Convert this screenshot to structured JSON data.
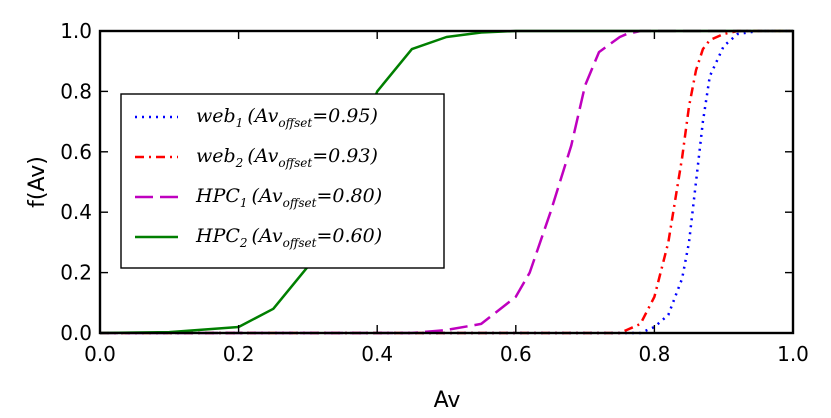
{
  "chart_data": {
    "type": "line",
    "xlabel": "Av",
    "ylabel": "f(Av)",
    "xlim": [
      0.0,
      1.0
    ],
    "ylim": [
      0.0,
      1.0
    ],
    "xticks": [
      "0.0",
      "0.2",
      "0.4",
      "0.6",
      "0.8",
      "1.0"
    ],
    "yticks": [
      "0.0",
      "0.2",
      "0.4",
      "0.6",
      "0.8",
      "1.0"
    ],
    "grid": false,
    "legend_position": "center-left",
    "x": [
      0.0,
      0.1,
      0.2,
      0.25,
      0.3,
      0.35,
      0.4,
      0.45,
      0.5,
      0.55,
      0.6,
      0.62,
      0.65,
      0.68,
      0.7,
      0.72,
      0.75,
      0.76,
      0.78,
      0.8,
      0.82,
      0.84,
      0.85,
      0.86,
      0.87,
      0.88,
      0.9,
      0.92,
      0.95,
      1.0
    ],
    "series": [
      {
        "name": "web1 (Av_offset=0.95)",
        "legend": {
          "base": "web",
          "sub": "1",
          "mid": "(Av",
          "sub2": "offset",
          "value": "=0.95)"
        },
        "style": "dotted",
        "color": "#0000ff",
        "values": [
          0,
          0,
          0,
          0,
          0,
          0,
          0,
          0,
          0,
          0,
          0,
          0,
          0,
          0,
          0,
          0,
          0,
          0,
          0,
          0.02,
          0.06,
          0.18,
          0.3,
          0.5,
          0.7,
          0.85,
          0.95,
          0.99,
          1.0,
          1.0
        ]
      },
      {
        "name": "web2 (Av_offset=0.93)",
        "legend": {
          "base": "web",
          "sub": "2",
          "mid": "(Av",
          "sub2": "offset",
          "value": "=0.93)"
        },
        "style": "dashdot",
        "color": "#ff0000",
        "values": [
          0,
          0,
          0,
          0,
          0,
          0,
          0,
          0,
          0,
          0,
          0,
          0,
          0,
          0,
          0,
          0,
          0,
          0.01,
          0.03,
          0.12,
          0.3,
          0.58,
          0.75,
          0.87,
          0.94,
          0.97,
          0.99,
          1.0,
          1.0,
          1.0
        ]
      },
      {
        "name": "HPC1 (Av_offset=0.80)",
        "legend": {
          "base": "HPC",
          "sub": "1",
          "mid": "(Av",
          "sub2": "offset",
          "value": "=0.80)"
        },
        "style": "dashed",
        "color": "#bf00bf",
        "values": [
          0,
          0,
          0,
          0,
          0,
          0,
          0,
          0,
          0.01,
          0.03,
          0.12,
          0.2,
          0.4,
          0.62,
          0.82,
          0.93,
          0.98,
          0.99,
          1.0,
          1.0,
          1.0,
          1.0,
          1.0,
          1.0,
          1.0,
          1.0,
          1.0,
          1.0,
          1.0,
          1.0
        ]
      },
      {
        "name": "HPC2 (Av_offset=0.60)",
        "legend": {
          "base": "HPC",
          "sub": "2",
          "mid": "(Av",
          "sub2": "offset",
          "value": "=0.60)"
        },
        "style": "solid",
        "color": "#007f00",
        "values": [
          0,
          0.003,
          0.02,
          0.08,
          0.22,
          0.5,
          0.8,
          0.94,
          0.98,
          0.995,
          1.0,
          1.0,
          1.0,
          1.0,
          1.0,
          1.0,
          1.0,
          1.0,
          1.0,
          1.0,
          1.0,
          1.0,
          1.0,
          1.0,
          1.0,
          1.0,
          1.0,
          1.0,
          1.0,
          1.0
        ]
      }
    ]
  }
}
